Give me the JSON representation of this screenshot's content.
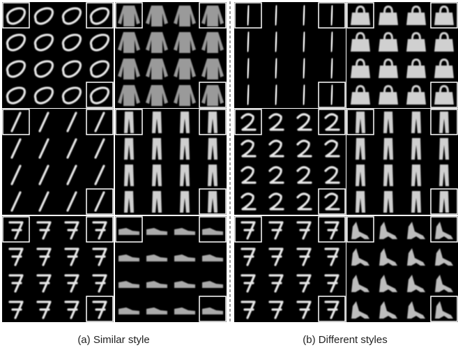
{
  "captions": [
    "(a) Similar style",
    "(b) Different styles"
  ]
}
